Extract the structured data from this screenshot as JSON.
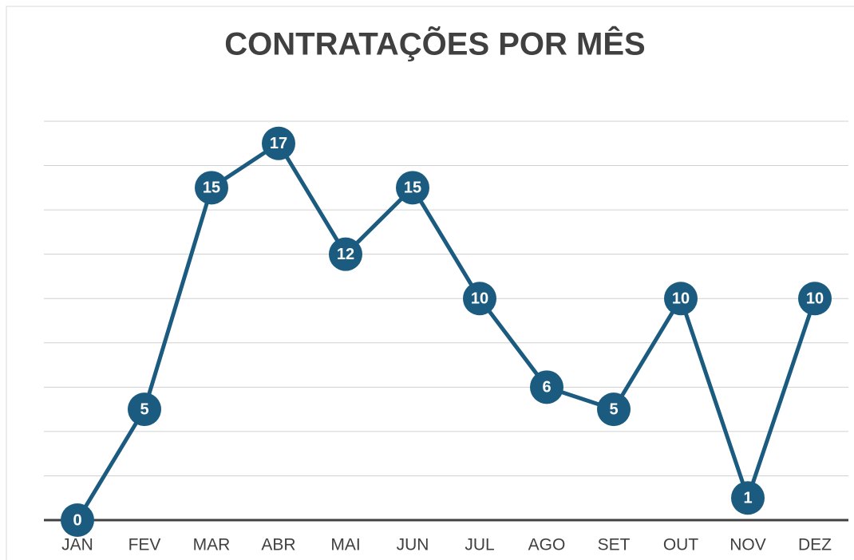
{
  "chart_data": {
    "type": "line",
    "title": "CONTRATAÇÕES POR MÊS",
    "categories": [
      "JAN",
      "FEV",
      "MAR",
      "ABR",
      "MAI",
      "JUN",
      "JUL",
      "AGO",
      "SET",
      "OUT",
      "NOV",
      "DEZ"
    ],
    "values": [
      0,
      5,
      15,
      17,
      12,
      15,
      10,
      6,
      5,
      10,
      1,
      10
    ],
    "color": "#1b5b80",
    "ylim": [
      0,
      18
    ],
    "yticks": [
      0,
      2,
      4,
      6,
      8,
      10,
      12,
      14,
      16,
      18
    ],
    "grid": true
  }
}
